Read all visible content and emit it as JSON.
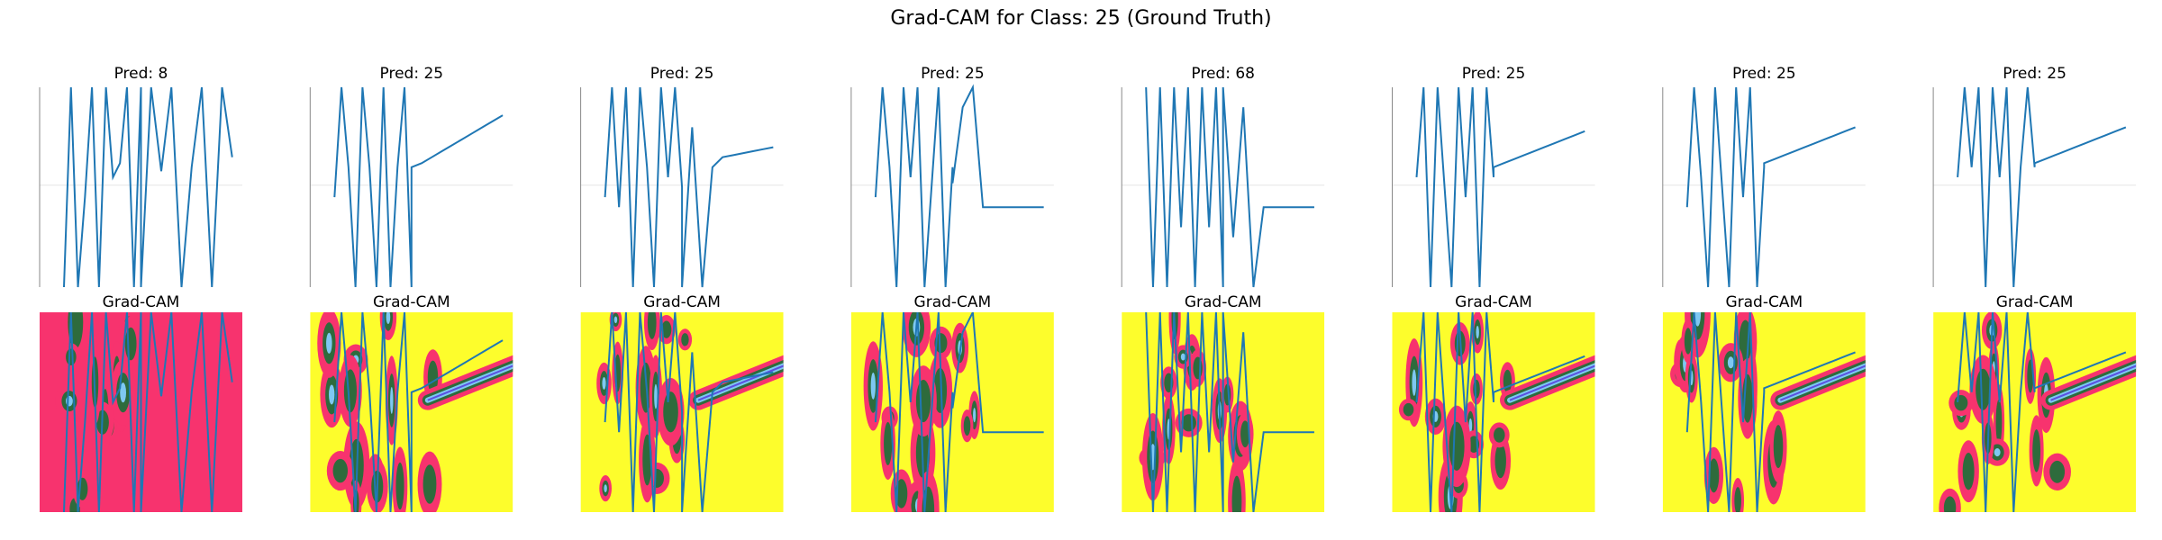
{
  "figure": {
    "title": "Grad-CAM for Class: 25 (Ground Truth)"
  },
  "colors": {
    "line": "#1f77b4",
    "cam_background": "#fdfd2c",
    "cam_hot": "#f7336e",
    "cam_mid": "#2e6b3c",
    "cam_core": "#7ec8f2",
    "cam_center": "#5b4fe0",
    "grid": "#e6e6e6"
  },
  "chart_data": [
    {
      "type": "line",
      "panel": 1,
      "title": "Pred: 8",
      "cam_title": "Grad-CAM",
      "pred": 8,
      "cam_fill": "magenta",
      "series": [
        {
          "values": [
            0,
            1,
            0,
            0.45,
            1,
            0,
            1,
            0.55,
            0.62,
            1,
            0,
            1,
            0,
            1,
            0.58,
            1,
            0,
            0.6,
            1,
            0,
            1,
            0.65
          ]
        }
      ]
    },
    {
      "type": "line",
      "panel": 2,
      "title": "Pred: 25",
      "cam_title": "Grad-CAM",
      "pred": 25,
      "cam_fill": "yellow",
      "series": [
        {
          "values": [
            0.45,
            1,
            0.6,
            0,
            1,
            0.6,
            0,
            1,
            0,
            0.6,
            1,
            0,
            0.6,
            0.62,
            0.65,
            0.68,
            0.71,
            0.74,
            0.77,
            0.8,
            0.83,
            0.86
          ]
        }
      ]
    },
    {
      "type": "line",
      "panel": 3,
      "title": "Pred: 25",
      "cam_title": "Grad-CAM",
      "pred": 25,
      "cam_fill": "yellow",
      "series": [
        {
          "values": [
            0.45,
            1,
            0.4,
            1,
            0,
            1,
            0.6,
            0,
            1,
            0.55,
            1,
            0.5,
            0,
            0.8,
            0,
            0.6,
            0.65,
            0.66,
            0.67,
            0.68,
            0.69,
            0.7
          ]
        }
      ]
    },
    {
      "type": "line",
      "panel": 4,
      "title": "Pred: 25",
      "cam_title": "Grad-CAM",
      "pred": 25,
      "cam_fill": "yellow",
      "series": [
        {
          "values": [
            0.45,
            1,
            0.6,
            0,
            1,
            0.55,
            1,
            0,
            0.5,
            1,
            0,
            0.6,
            0.52,
            0.9,
            1,
            0.4,
            0.4,
            0.4,
            0.4,
            0.4,
            0.4,
            0.4
          ]
        }
      ]
    },
    {
      "type": "line",
      "panel": 5,
      "title": "Pred: 68",
      "cam_title": "Grad-CAM",
      "pred": 68,
      "cam_fill": "yellow",
      "series": [
        {
          "values": [
            1,
            0,
            1,
            0,
            1,
            0.3,
            1,
            0,
            1,
            0.3,
            1,
            0,
            1,
            0.25,
            0.9,
            0,
            0.4,
            0.4,
            0.4,
            0.4,
            0.4,
            0.4
          ]
        }
      ]
    },
    {
      "type": "line",
      "panel": 6,
      "title": "Pred: 25",
      "cam_title": "Grad-CAM",
      "pred": 25,
      "cam_fill": "yellow",
      "series": [
        {
          "values": [
            0.55,
            1,
            0,
            1,
            0.5,
            0,
            1,
            0.45,
            1,
            0,
            1,
            0.55,
            0.6,
            0.62,
            0.64,
            0.66,
            0.68,
            0.7,
            0.72,
            0.74,
            0.76,
            0.78
          ]
        }
      ]
    },
    {
      "type": "line",
      "panel": 7,
      "title": "Pred: 25",
      "cam_title": "Grad-CAM",
      "pred": 25,
      "cam_fill": "yellow",
      "series": [
        {
          "values": [
            0.4,
            1,
            0.55,
            0,
            1,
            0.5,
            0,
            1,
            0.45,
            1,
            0,
            0.6,
            0.62,
            0.64,
            0.66,
            0.68,
            0.7,
            0.72,
            0.74,
            0.76,
            0.78,
            0.8
          ]
        }
      ]
    },
    {
      "type": "line",
      "panel": 8,
      "title": "Pred: 25",
      "cam_title": "Grad-CAM",
      "pred": 25,
      "cam_fill": "yellow",
      "series": [
        {
          "values": [
            0.55,
            1,
            0.6,
            1,
            0,
            1,
            0.55,
            1,
            0,
            0.6,
            1,
            0.6,
            0.62,
            0.64,
            0.66,
            0.68,
            0.7,
            0.72,
            0.74,
            0.76,
            0.78,
            0.8
          ]
        }
      ]
    }
  ]
}
